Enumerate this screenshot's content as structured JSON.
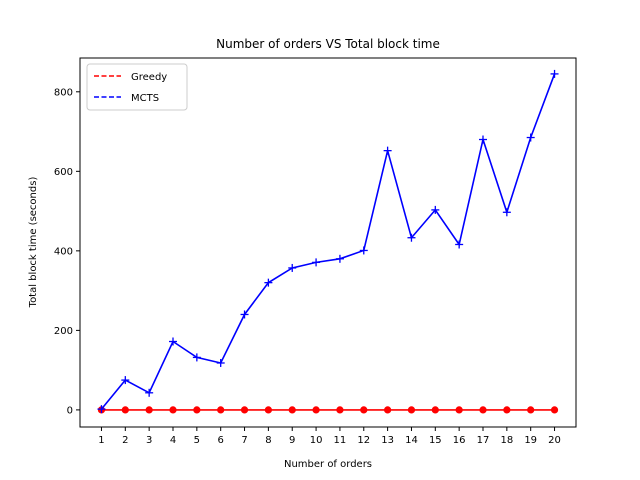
{
  "chart_data": {
    "type": "line",
    "title": "Number of orders VS Total block time",
    "xlabel": "Number of orders",
    "ylabel": "Total block time (seconds)",
    "x": [
      1,
      2,
      3,
      4,
      5,
      6,
      7,
      8,
      9,
      10,
      11,
      12,
      13,
      14,
      15,
      16,
      17,
      18,
      19,
      20
    ],
    "xlim": [
      0.1,
      20.9
    ],
    "ylim": [
      -43,
      885
    ],
    "yticks": [
      0,
      200,
      400,
      600,
      800
    ],
    "legend_position": "upper-left",
    "grid": false,
    "series": [
      {
        "name": "Greedy",
        "color": "#ff0000",
        "marker": "circle",
        "legend_style": "dashed",
        "values": [
          0,
          0,
          0,
          0,
          0,
          0,
          0,
          0,
          0,
          0,
          0,
          0,
          0,
          0,
          0,
          0,
          0,
          0,
          0,
          0
        ]
      },
      {
        "name": "MCTS",
        "color": "#0000ff",
        "marker": "plus",
        "legend_style": "dashed",
        "values": [
          2,
          75,
          43,
          172,
          132,
          118,
          240,
          320,
          357,
          371,
          380,
          401,
          652,
          433,
          503,
          416,
          680,
          497,
          685,
          845
        ]
      }
    ]
  }
}
